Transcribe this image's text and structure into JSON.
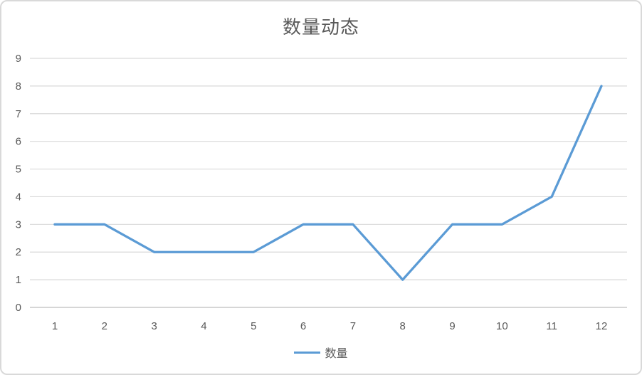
{
  "chart_data": {
    "type": "line",
    "title": "数量动态",
    "categories": [
      "1",
      "2",
      "3",
      "4",
      "5",
      "6",
      "7",
      "8",
      "9",
      "10",
      "11",
      "12"
    ],
    "series": [
      {
        "name": "数量",
        "values": [
          3,
          3,
          2,
          2,
          2,
          3,
          3,
          1,
          3,
          3,
          4,
          8
        ]
      }
    ],
    "xlabel": "",
    "ylabel": "",
    "ylim": [
      0,
      9
    ],
    "yticks": [
      0,
      1,
      2,
      3,
      4,
      5,
      6,
      7,
      8,
      9
    ],
    "grid": true,
    "legend_position": "bottom",
    "colors": {
      "line": "#5b9bd5",
      "gridline": "#d9d9d9",
      "axis_line": "#c8c8c8",
      "tick_label": "#595959",
      "title": "#595959",
      "border": "#d9d9d9",
      "background": "#ffffff"
    }
  }
}
